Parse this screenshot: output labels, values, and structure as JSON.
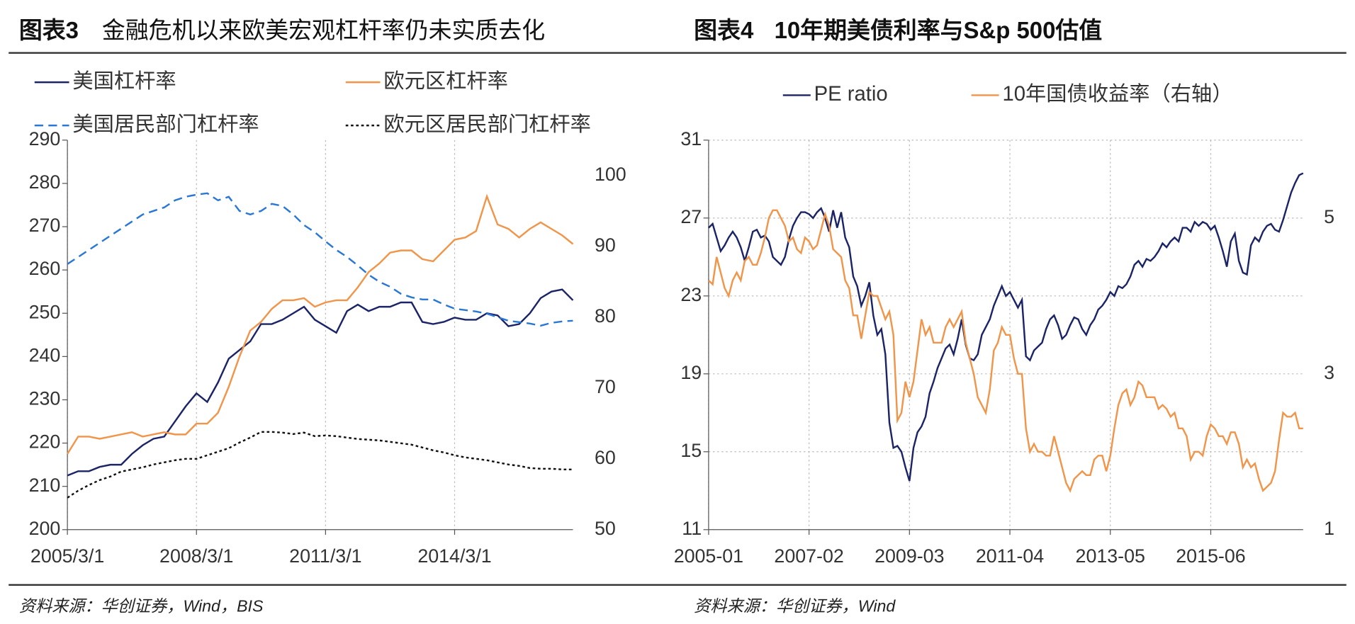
{
  "chart_data": [
    {
      "type": "line",
      "figure_label": "图表3",
      "title": "金融危机以来欧美宏观杠杆率仍未实质去化",
      "source": "资料来源：华创证券，Wind，BIS",
      "categories": [
        "2005/3/1",
        null,
        null,
        null,
        null,
        null,
        null,
        null,
        null,
        null,
        null,
        null,
        "2008/3/1",
        null,
        null,
        null,
        null,
        null,
        null,
        null,
        null,
        null,
        null,
        null,
        "2011/3/1",
        null,
        null,
        null,
        null,
        null,
        null,
        null,
        null,
        null,
        null,
        null,
        "2014/3/1",
        null,
        null,
        null,
        null,
        null,
        null,
        null,
        null,
        null,
        null,
        null
      ],
      "ylim": [
        200,
        290
      ],
      "yticks": [
        200,
        210,
        220,
        230,
        240,
        250,
        260,
        270,
        280,
        290
      ],
      "y2lim": [
        50,
        105
      ],
      "y2ticks": [
        50,
        60,
        70,
        80,
        90,
        100
      ],
      "grid": "x",
      "series": [
        {
          "name": "美国杠杆率",
          "color": "#1b2466",
          "line_style": "solid",
          "values": [
            212.5,
            213.5,
            213.5,
            214.5,
            215,
            215,
            217.5,
            219.5,
            221,
            221.5,
            225,
            228.5,
            231.5,
            229.5,
            234,
            239.5,
            241.5,
            243.5,
            247.5,
            247.5,
            248.5,
            250,
            251.5,
            248.5,
            247,
            245.5,
            250.5,
            252,
            250.5,
            251.5,
            251.5,
            252.5,
            252.5,
            248,
            247.5,
            248,
            249,
            248.5,
            248.5,
            250,
            249.5,
            247,
            247.5,
            250,
            253.5,
            255,
            255.5,
            253
          ]
        },
        {
          "name": "欧元区杠杆率",
          "color": "#f0954a",
          "line_style": "solid",
          "values": [
            217.5,
            221.5,
            221.5,
            221,
            221.5,
            222,
            222.5,
            221.5,
            222,
            222.5,
            222,
            222,
            224.5,
            224.5,
            227,
            233,
            240,
            246,
            248,
            251,
            253,
            253,
            253.5,
            251.5,
            252.5,
            253,
            253,
            256,
            259.5,
            261.5,
            264,
            264.5,
            264.5,
            262.5,
            262,
            264.5,
            267,
            267.5,
            269,
            277,
            270.5,
            269.5,
            267.5,
            269.5,
            271,
            269.5,
            268,
            266
          ]
        },
        {
          "name": "美国居民部门杠杆率",
          "color": "#2a77d4",
          "line_style": "dashed",
          "axis": "y2",
          "values": [
            87.5,
            88.5,
            89.5,
            90.5,
            91.5,
            92.5,
            93.5,
            94.5,
            95,
            95.5,
            96.5,
            97,
            97.3,
            97.5,
            96.5,
            97,
            95,
            94.5,
            95,
            96,
            95.7,
            94.5,
            93,
            92,
            90.7,
            89.5,
            88.5,
            87.3,
            86,
            85,
            84.3,
            83.3,
            82.8,
            82.5,
            82.5,
            81.8,
            81.2,
            81,
            80.8,
            80.5,
            80,
            79.5,
            79.3,
            79.1,
            78.8,
            79.2,
            79.4,
            79.5
          ]
        },
        {
          "name": "欧元区居民部门杠杆率",
          "color": "#111111",
          "line_style": "dotted",
          "axis": "y2",
          "values": [
            54.5,
            55.5,
            56.3,
            57,
            57.5,
            58.2,
            58.5,
            58.8,
            59.2,
            59.5,
            59.8,
            60,
            60,
            60.5,
            61,
            61.5,
            62.3,
            63,
            63.8,
            63.8,
            63.7,
            63.5,
            63.7,
            63.2,
            63.3,
            63.2,
            63,
            62.8,
            62.7,
            62.6,
            62.4,
            62.2,
            62,
            61.6,
            61.2,
            60.9,
            60.5,
            60.2,
            60,
            59.8,
            59.5,
            59.2,
            59,
            58.7,
            58.6,
            58.6,
            58.5,
            58.5
          ]
        }
      ]
    },
    {
      "type": "line",
      "figure_label": "图表4",
      "title": "10年期美债利率与S&p 500估值",
      "source": "资料来源：华创证券，Wind",
      "categories": [
        "2005-01",
        null,
        null,
        null,
        null,
        null,
        null,
        null,
        null,
        null,
        null,
        null,
        null,
        null,
        null,
        null,
        null,
        null,
        null,
        null,
        null,
        null,
        null,
        null,
        null,
        "2007-02",
        null,
        null,
        null,
        null,
        null,
        null,
        null,
        null,
        null,
        null,
        null,
        null,
        null,
        null,
        null,
        null,
        null,
        null,
        null,
        null,
        null,
        null,
        null,
        null,
        "2009-03",
        null,
        null,
        null,
        null,
        null,
        null,
        null,
        null,
        null,
        null,
        null,
        null,
        null,
        null,
        null,
        null,
        null,
        null,
        null,
        null,
        null,
        null,
        null,
        null,
        "2011-04",
        null,
        null,
        null,
        null,
        null,
        null,
        null,
        null,
        null,
        null,
        null,
        null,
        null,
        null,
        null,
        null,
        null,
        null,
        null,
        null,
        null,
        null,
        null,
        null,
        "2013-05",
        null,
        null,
        null,
        null,
        null,
        null,
        null,
        null,
        null,
        null,
        null,
        null,
        null,
        null,
        null,
        null,
        null,
        null,
        null,
        null,
        null,
        null,
        null,
        null,
        "2015-06",
        null,
        null,
        null,
        null,
        null,
        null,
        null,
        null,
        null,
        null,
        null,
        null,
        null,
        null,
        null,
        null,
        null,
        null,
        null,
        null,
        null,
        null,
        null
      ],
      "ylim": [
        11,
        31
      ],
      "yticks": [
        11,
        15,
        19,
        23,
        27,
        31
      ],
      "y2lim": [
        1,
        6
      ],
      "y2ticks": [
        1,
        3,
        5
      ],
      "grid": "both",
      "series": [
        {
          "name": "PE ratio",
          "color": "#1b2466",
          "line_style": "solid",
          "values": [
            26.5,
            26.7,
            26.0,
            25.3,
            25.6,
            26.0,
            26.3,
            26.0,
            25.5,
            24.8,
            25.5,
            26.3,
            26.4,
            26.0,
            26.1,
            25.8,
            25.0,
            24.8,
            24.6,
            25.0,
            25.9,
            26.6,
            27.0,
            27.3,
            27.3,
            27.2,
            27.0,
            27.3,
            27.5,
            27.0,
            26.3,
            27.4,
            26.5,
            27.3,
            26.0,
            25.5,
            24.0,
            23.5,
            22.5,
            23.0,
            23.7,
            22.0,
            21.0,
            21.3,
            20.0,
            16.5,
            15.2,
            15.3,
            15.0,
            14.2,
            13.5,
            15.2,
            16.0,
            16.3,
            16.8,
            18.0,
            18.6,
            19.3,
            19.8,
            20.3,
            20.5,
            20.0,
            20.8,
            21.8,
            20.5,
            19.8,
            19.7,
            20.0,
            21.0,
            21.4,
            21.8,
            22.5,
            23.0,
            23.5,
            23.0,
            23.2,
            22.8,
            22.4,
            22.8,
            19.9,
            19.7,
            20.2,
            20.4,
            20.6,
            21.3,
            21.8,
            22.0,
            21.5,
            20.8,
            21.0,
            21.5,
            21.9,
            21.8,
            21.3,
            21.0,
            21.5,
            21.8,
            22.3,
            22.5,
            22.8,
            23.2,
            23.0,
            23.5,
            23.4,
            23.6,
            24.0,
            24.6,
            24.8,
            24.5,
            24.9,
            24.8,
            25.0,
            25.3,
            25.7,
            25.5,
            25.8,
            26.0,
            25.8,
            26.5,
            26.5,
            26.3,
            26.8,
            26.6,
            26.8,
            26.7,
            26.4,
            26.6,
            26.0,
            25.3,
            24.5,
            25.8,
            26.2,
            24.8,
            24.2,
            24.1,
            25.6,
            26.0,
            25.8,
            26.3,
            26.6,
            26.7,
            26.4,
            26.3,
            26.9,
            27.6,
            28.3,
            28.8,
            29.2,
            29.3
          ]
        },
        {
          "name": "10年国债收益率（右轴）",
          "color": "#f0954a",
          "line_style": "solid",
          "axis": "y2",
          "values": [
            4.2,
            4.15,
            4.5,
            4.3,
            4.1,
            4.0,
            4.2,
            4.3,
            4.2,
            4.45,
            4.5,
            4.4,
            4.4,
            4.55,
            4.75,
            5.0,
            5.1,
            5.1,
            5.0,
            4.9,
            4.7,
            4.75,
            4.6,
            4.55,
            4.75,
            4.7,
            4.6,
            4.65,
            4.85,
            5.05,
            4.9,
            4.6,
            4.55,
            4.5,
            4.2,
            4.1,
            3.75,
            3.75,
            3.45,
            3.75,
            4.05,
            4.0,
            4.0,
            3.85,
            3.7,
            3.8,
            3.5,
            2.4,
            2.5,
            2.9,
            2.7,
            2.9,
            3.3,
            3.7,
            3.5,
            3.6,
            3.4,
            3.4,
            3.4,
            3.6,
            3.7,
            3.6,
            3.7,
            3.8,
            3.4,
            3.2,
            3.0,
            2.7,
            2.6,
            2.5,
            2.8,
            3.3,
            3.4,
            3.6,
            3.5,
            3.5,
            3.2,
            3.0,
            3.0,
            2.3,
            2.0,
            2.1,
            2.0,
            2.0,
            1.95,
            1.95,
            2.2,
            2.0,
            1.8,
            1.6,
            1.5,
            1.65,
            1.7,
            1.75,
            1.7,
            1.7,
            1.9,
            1.95,
            1.95,
            1.75,
            1.95,
            2.3,
            2.6,
            2.75,
            2.8,
            2.6,
            2.7,
            2.9,
            2.85,
            2.7,
            2.7,
            2.7,
            2.55,
            2.6,
            2.55,
            2.45,
            2.5,
            2.3,
            2.3,
            2.2,
            1.9,
            2.0,
            2.0,
            1.95,
            2.2,
            2.35,
            2.3,
            2.2,
            2.2,
            2.1,
            2.25,
            2.25,
            2.1,
            1.8,
            1.9,
            1.8,
            1.85,
            1.65,
            1.5,
            1.55,
            1.6,
            1.75,
            2.15,
            2.5,
            2.45,
            2.45,
            2.5,
            2.3,
            2.3
          ]
        }
      ]
    }
  ]
}
